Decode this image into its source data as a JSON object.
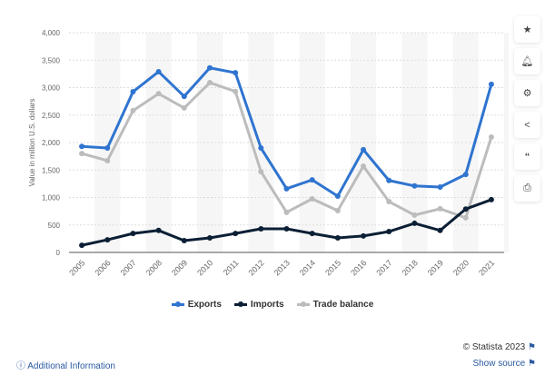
{
  "chart_data": {
    "type": "line",
    "ylabel": "Value in million U.S. dollars",
    "ylim": [
      0,
      4000
    ],
    "yticks": [
      "0",
      "500",
      "1,000",
      "1,500",
      "2,000",
      "2,500",
      "3,000",
      "3,500",
      "4,000"
    ],
    "x": [
      "2005",
      "2006",
      "2007",
      "2008",
      "2009",
      "2010",
      "2011",
      "2012",
      "2013",
      "2014",
      "2015",
      "2016",
      "2017",
      "2018",
      "2019",
      "2020",
      "2021"
    ],
    "series": [
      {
        "name": "Exports",
        "color": "#2f74d0",
        "values": [
          1930,
          1900,
          2925,
          3290,
          2840,
          3360,
          3270,
          1900,
          1160,
          1320,
          1025,
          1870,
          1310,
          1210,
          1190,
          1420,
          3060
        ]
      },
      {
        "name": "Imports",
        "color": "#0b1f35",
        "values": [
          130,
          230,
          345,
          400,
          215,
          265,
          345,
          430,
          430,
          345,
          265,
          300,
          380,
          530,
          400,
          790,
          960
        ]
      },
      {
        "name": "Trade balance",
        "color": "#bcbcbc",
        "values": [
          1800,
          1670,
          2580,
          2890,
          2630,
          3090,
          2930,
          1470,
          730,
          975,
          760,
          1570,
          925,
          680,
          795,
          630,
          2100
        ]
      }
    ],
    "grid": true,
    "legend": "bottom"
  },
  "sidebar": [
    "star-icon",
    "bell-icon",
    "gear-icon",
    "share-icon",
    "quote-icon",
    "print-icon"
  ],
  "footer": {
    "additional": "Additional Information",
    "copyright": "© Statista 2023",
    "show_source": "Show source"
  }
}
